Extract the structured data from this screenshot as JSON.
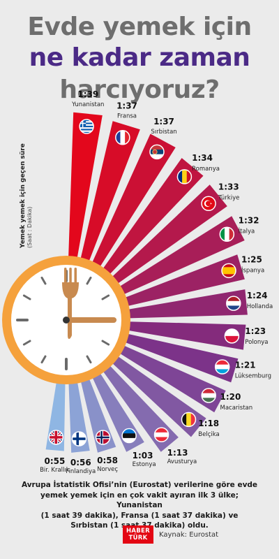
{
  "title": {
    "line1": "Evde yemek için",
    "line2": "ne kadar zaman",
    "line3": "harcıyoruz?"
  },
  "axis_label": {
    "main": "Yemek  yemek için geçen süre",
    "unit": "(Saat : Dakika)"
  },
  "chart_data": {
    "type": "bar",
    "categories": [
      "Yunanistan",
      "Fransa",
      "Sırbistan",
      "Romanya",
      "Türkiye",
      "İtalya",
      "İspanya",
      "Hollanda",
      "Polonya",
      "Lüksemburg",
      "Macaristan",
      "Belçika",
      "Avusturya",
      "Estonya",
      "Norveç",
      "Finlandiya",
      "Bir. Krallık"
    ],
    "values": [
      99,
      97,
      97,
      94,
      93,
      92,
      85,
      84,
      83,
      81,
      80,
      78,
      73,
      63,
      58,
      56,
      55
    ],
    "value_labels": [
      "1:39",
      "1:37",
      "1:37",
      "1:34",
      "1:33",
      "1:32",
      "1:25",
      "1:24",
      "1:23",
      "1:21",
      "1:20",
      "1:18",
      "1:13",
      "1:03",
      "0:58",
      "0:56",
      "0:55"
    ],
    "flags": [
      "greece-flag",
      "france-flag",
      "serbia-flag",
      "romania-flag",
      "turkey-flag",
      "italy-flag",
      "spain-flag",
      "netherlands-flag",
      "poland-flag",
      "luxembourg-flag",
      "hungary-flag",
      "belgium-flag",
      "austria-flag",
      "estonia-flag",
      "norway-flag",
      "finland-flag",
      "uk-flag"
    ],
    "colors": {
      "high": "#e3071c",
      "mid": "#7b2f86",
      "low": "#8fb6e3"
    },
    "clock_icon": "clock-with-fork-icon"
  },
  "footer": {
    "line1": "Avrupa İstatistik Ofisi’nin (Eurostat) verilerine göre evde",
    "line2": "yemek yemek için en çok vakit ayıran ilk 3 ülke; Yunanistan",
    "line3": "(1 saat 39 dakika), Fransa (1 saat 37 dakika) ve",
    "line4": "Sırbistan (1 saat 37 dakika) oldu."
  },
  "logo": {
    "line1": "HABER",
    "line2": "TÜRK"
  },
  "source": "Kaynak: Eurostat"
}
